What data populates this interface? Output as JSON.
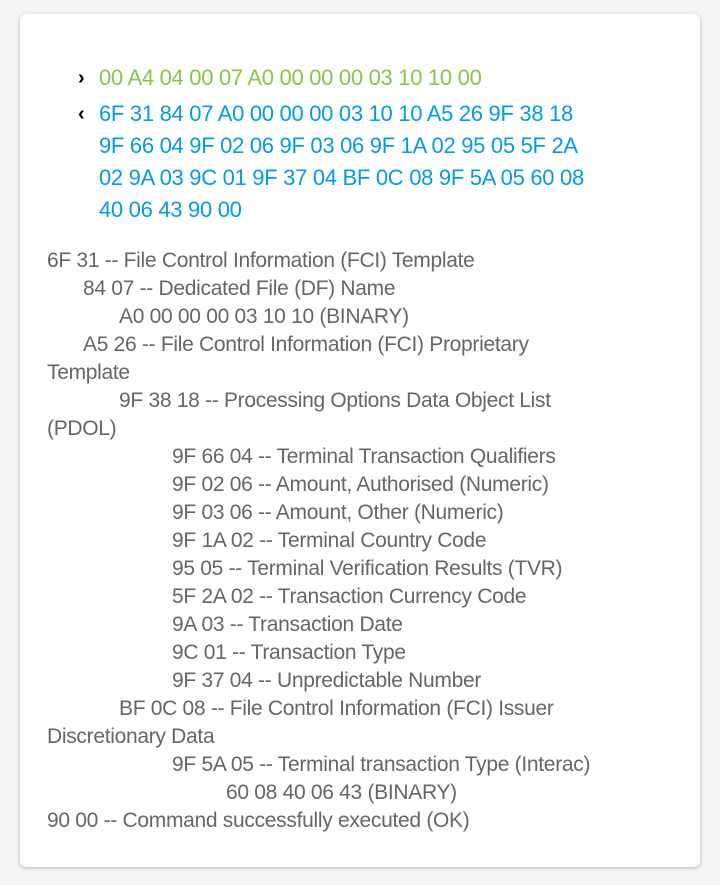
{
  "sent": {
    "direction_icon": "chevron-right-icon",
    "hex": "00 A4 04 00 07 A0 00 00 00 03 10 10 00",
    "color": "#8bc34a"
  },
  "received": {
    "direction_icon": "chevron-left-icon",
    "hex": "6F 31 84 07 A0 00 00 00 03 10 10 A5 26 9F 38 18\n9F 66 04 9F 02 06 9F 03 06 9F 1A 02 95 05 5F 2A\n02 9A 03 9C 01 9F 37 04 BF 0C 08 9F 5A 05 60 08\n40 06 43 90 00",
    "color": "#039be5"
  },
  "parsed": [
    {
      "indent": 0,
      "text": "6F 31 -- File Control Information (FCI) Template"
    },
    {
      "indent": 1,
      "text": "84 07 -- Dedicated File (DF) Name"
    },
    {
      "indent": 2,
      "text": "A0 00 00 00 03 10 10 (BINARY)"
    },
    {
      "indent": 1,
      "text": "A5 26 -- File Control Information (FCI) Proprietary"
    },
    {
      "indent": 0,
      "text": "Template"
    },
    {
      "indent": 2,
      "text": "9F 38 18 -- Processing Options Data Object List"
    },
    {
      "indent": 0,
      "text": "(PDOL)"
    },
    {
      "indent": 3,
      "text": "9F 66 04 -- Terminal Transaction Qualifiers"
    },
    {
      "indent": 3,
      "text": "9F 02 06 -- Amount, Authorised (Numeric)"
    },
    {
      "indent": 3,
      "text": "9F 03 06 -- Amount, Other (Numeric)"
    },
    {
      "indent": 3,
      "text": "9F 1A 02 -- Terminal Country Code"
    },
    {
      "indent": 3,
      "text": "95 05 -- Terminal Verification Results (TVR)"
    },
    {
      "indent": 3,
      "text": "5F 2A 02 -- Transaction Currency Code"
    },
    {
      "indent": 3,
      "text": "9A 03 -- Transaction Date"
    },
    {
      "indent": 3,
      "text": "9C 01 -- Transaction Type"
    },
    {
      "indent": 3,
      "text": "9F 37 04 -- Unpredictable Number"
    },
    {
      "indent": 2,
      "text": "BF 0C 08 -- File Control Information (FCI) Issuer"
    },
    {
      "indent": 0,
      "text": "Discretionary Data"
    },
    {
      "indent": 3,
      "text": "9F 5A 05 -- Terminal transaction Type (Interac)"
    },
    {
      "indent": 4,
      "text": "60 08 40 06 43 (BINARY)"
    },
    {
      "indent": 0,
      "text": "90 00 -- Command successfully executed (OK)"
    }
  ]
}
